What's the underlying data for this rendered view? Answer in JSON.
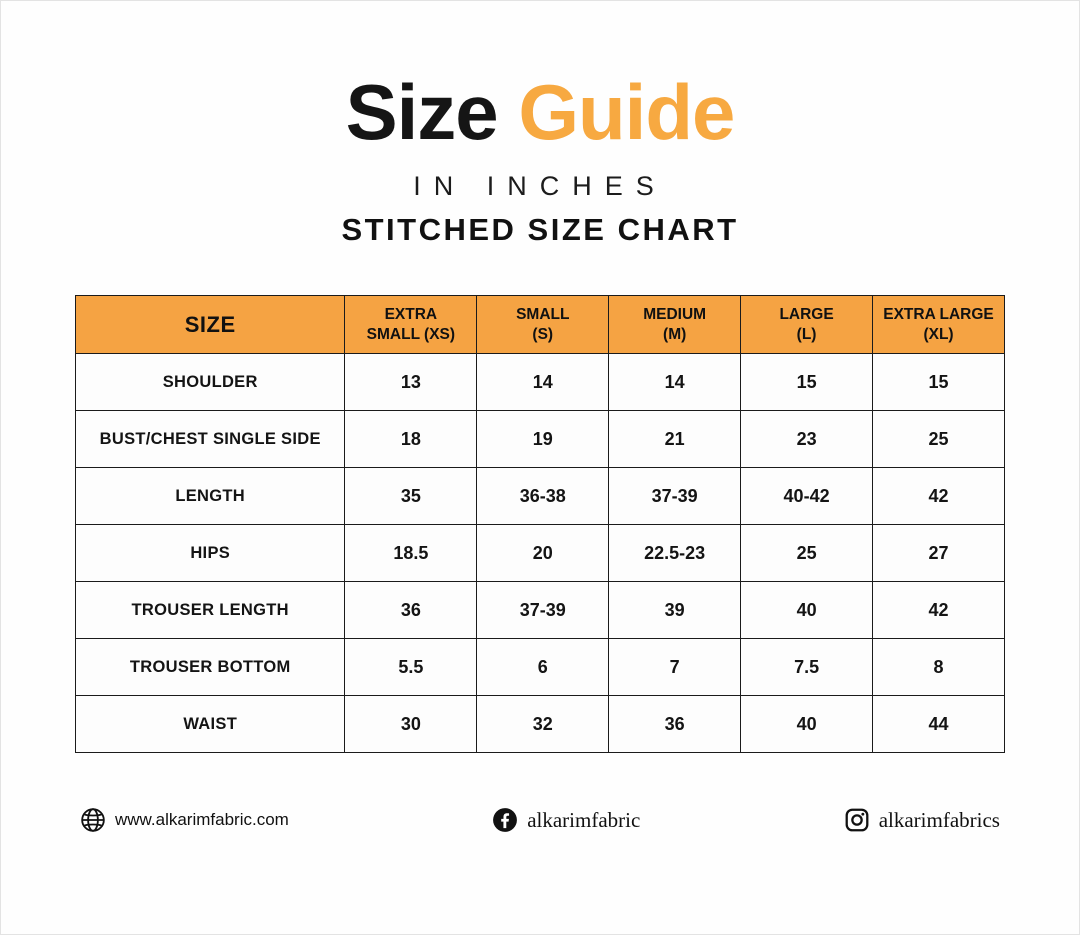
{
  "title": {
    "black": "Size",
    "orange": "Guide"
  },
  "subtitle_inches": "IN INCHES",
  "subtitle_chart": "STITCHED SIZE CHART",
  "colors": {
    "accent_orange": "#F5A343",
    "title_orange": "#F7A941",
    "text_black": "#141414",
    "table_border": "#1b1b1b"
  },
  "chart_data": {
    "type": "table",
    "title": "Stitched Size Chart (inches)",
    "columns": [
      "SIZE",
      "EXTRA\nSMALL (XS)",
      "SMALL\n(S)",
      "MEDIUM\n(M)",
      "LARGE\n(L)",
      "EXTRA LARGE\n(XL)"
    ],
    "rows": [
      {
        "label": "SHOULDER",
        "values": [
          "13",
          "14",
          "14",
          "15",
          "15"
        ]
      },
      {
        "label": "BUST/CHEST SINGLE SIDE",
        "values": [
          "18",
          "19",
          "21",
          "23",
          "25"
        ]
      },
      {
        "label": "LENGTH",
        "values": [
          "35",
          "36-38",
          "37-39",
          "40-42",
          "42"
        ]
      },
      {
        "label": "HIPS",
        "values": [
          "18.5",
          "20",
          "22.5-23",
          "25",
          "27"
        ]
      },
      {
        "label": "TROUSER LENGTH",
        "values": [
          "36",
          "37-39",
          "39",
          "40",
          "42"
        ]
      },
      {
        "label": "TROUSER BOTTOM",
        "values": [
          "5.5",
          "6",
          "7",
          "7.5",
          "8"
        ]
      },
      {
        "label": "WAIST",
        "values": [
          "30",
          "32",
          "36",
          "40",
          "44"
        ]
      }
    ]
  },
  "footer": {
    "website": {
      "icon": "globe-icon",
      "text": "www.alkarimfabric.com"
    },
    "facebook": {
      "icon": "facebook-icon",
      "text": "alkarimfabric"
    },
    "instagram": {
      "icon": "instagram-icon",
      "text": "alkarimfabrics"
    }
  }
}
